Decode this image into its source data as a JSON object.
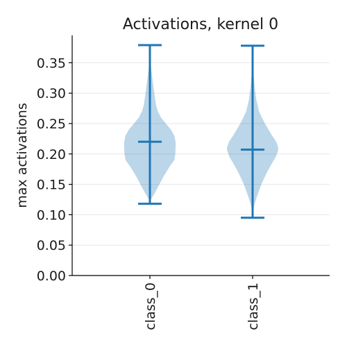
{
  "chart_data": {
    "type": "violin",
    "title": "Activations, kernel 0",
    "xlabel": "",
    "ylabel": "max activations",
    "ylim": [
      0,
      0.395
    ],
    "yticks": [
      0.0,
      0.05,
      0.1,
      0.15,
      0.2,
      0.25,
      0.3,
      0.35
    ],
    "ytick_labels": [
      "0.00",
      "0.05",
      "0.10",
      "0.15",
      "0.20",
      "0.25",
      "0.30",
      "0.35"
    ],
    "grid": "horizontal",
    "categories": [
      "class_0",
      "class_1"
    ],
    "series": [
      {
        "category": "class_0",
        "min": 0.118,
        "max": 0.379,
        "median": 0.22,
        "density": [
          [
            0.118,
            0.0
          ],
          [
            0.125,
            0.04
          ],
          [
            0.135,
            0.18
          ],
          [
            0.15,
            0.37
          ],
          [
            0.165,
            0.56
          ],
          [
            0.18,
            0.78
          ],
          [
            0.19,
            0.95
          ],
          [
            0.2,
            0.99
          ],
          [
            0.21,
            1.0
          ],
          [
            0.22,
            1.0
          ],
          [
            0.23,
            0.95
          ],
          [
            0.24,
            0.82
          ],
          [
            0.25,
            0.62
          ],
          [
            0.26,
            0.43
          ],
          [
            0.27,
            0.31
          ],
          [
            0.28,
            0.24
          ],
          [
            0.3,
            0.17
          ],
          [
            0.32,
            0.11
          ],
          [
            0.34,
            0.05
          ],
          [
            0.36,
            0.01
          ],
          [
            0.379,
            0.0
          ]
        ]
      },
      {
        "category": "class_1",
        "min": 0.095,
        "max": 0.378,
        "median": 0.207,
        "density": [
          [
            0.095,
            0.0
          ],
          [
            0.105,
            0.02
          ],
          [
            0.115,
            0.06
          ],
          [
            0.13,
            0.17
          ],
          [
            0.15,
            0.34
          ],
          [
            0.17,
            0.56
          ],
          [
            0.185,
            0.76
          ],
          [
            0.195,
            0.9
          ],
          [
            0.205,
            0.99
          ],
          [
            0.21,
            1.0
          ],
          [
            0.22,
            0.92
          ],
          [
            0.23,
            0.76
          ],
          [
            0.24,
            0.62
          ],
          [
            0.25,
            0.48
          ],
          [
            0.26,
            0.36
          ],
          [
            0.27,
            0.25
          ],
          [
            0.29,
            0.14
          ],
          [
            0.31,
            0.08
          ],
          [
            0.33,
            0.04
          ],
          [
            0.35,
            0.01
          ],
          [
            0.378,
            0.0
          ]
        ]
      }
    ],
    "colors": {
      "line": "#1f77b4",
      "body": "#1f77b4",
      "body_opacity": 0.3,
      "grid": "#e6e6e6",
      "axis": "#000000"
    }
  }
}
